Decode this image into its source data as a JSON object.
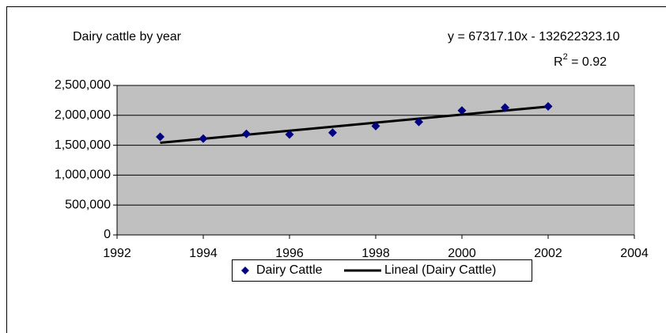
{
  "chart_data": {
    "type": "scatter",
    "title": "Dairy cattle by year",
    "equation": "y = 67317.10x - 132622323.10",
    "r_squared": {
      "symbol": "R",
      "exponent": "2",
      "text": " = 0.92"
    },
    "series": [
      {
        "name": "Dairy Cattle",
        "color": "#000080",
        "x": [
          1993,
          1994,
          1995,
          1996,
          1997,
          1998,
          1999,
          2000,
          2001,
          2002
        ],
        "values": [
          1640000,
          1610000,
          1690000,
          1680000,
          1710000,
          1820000,
          1890000,
          2080000,
          2130000,
          2150000
        ]
      }
    ],
    "trendline": {
      "name": "Lineal (Dairy Cattle)",
      "color": "#000000",
      "x": [
        1993,
        2002
      ],
      "values": [
        1540657,
        2146511
      ]
    },
    "xlim": [
      1992,
      2004
    ],
    "xticks": [
      1992,
      1994,
      1996,
      1998,
      2000,
      2002,
      2004
    ],
    "ylim": [
      0,
      2500000
    ],
    "yticks": [
      0,
      {
        "value": 500000,
        "label": "500,000"
      },
      {
        "value": 1000000,
        "label": "1,000,000"
      },
      {
        "value": 1500000,
        "label": "1,500,000"
      },
      {
        "value": 2000000,
        "label": "2,000,000"
      },
      {
        "value": 2500000,
        "label": "2,500,000"
      }
    ],
    "grid": true,
    "legend": "bottom"
  }
}
